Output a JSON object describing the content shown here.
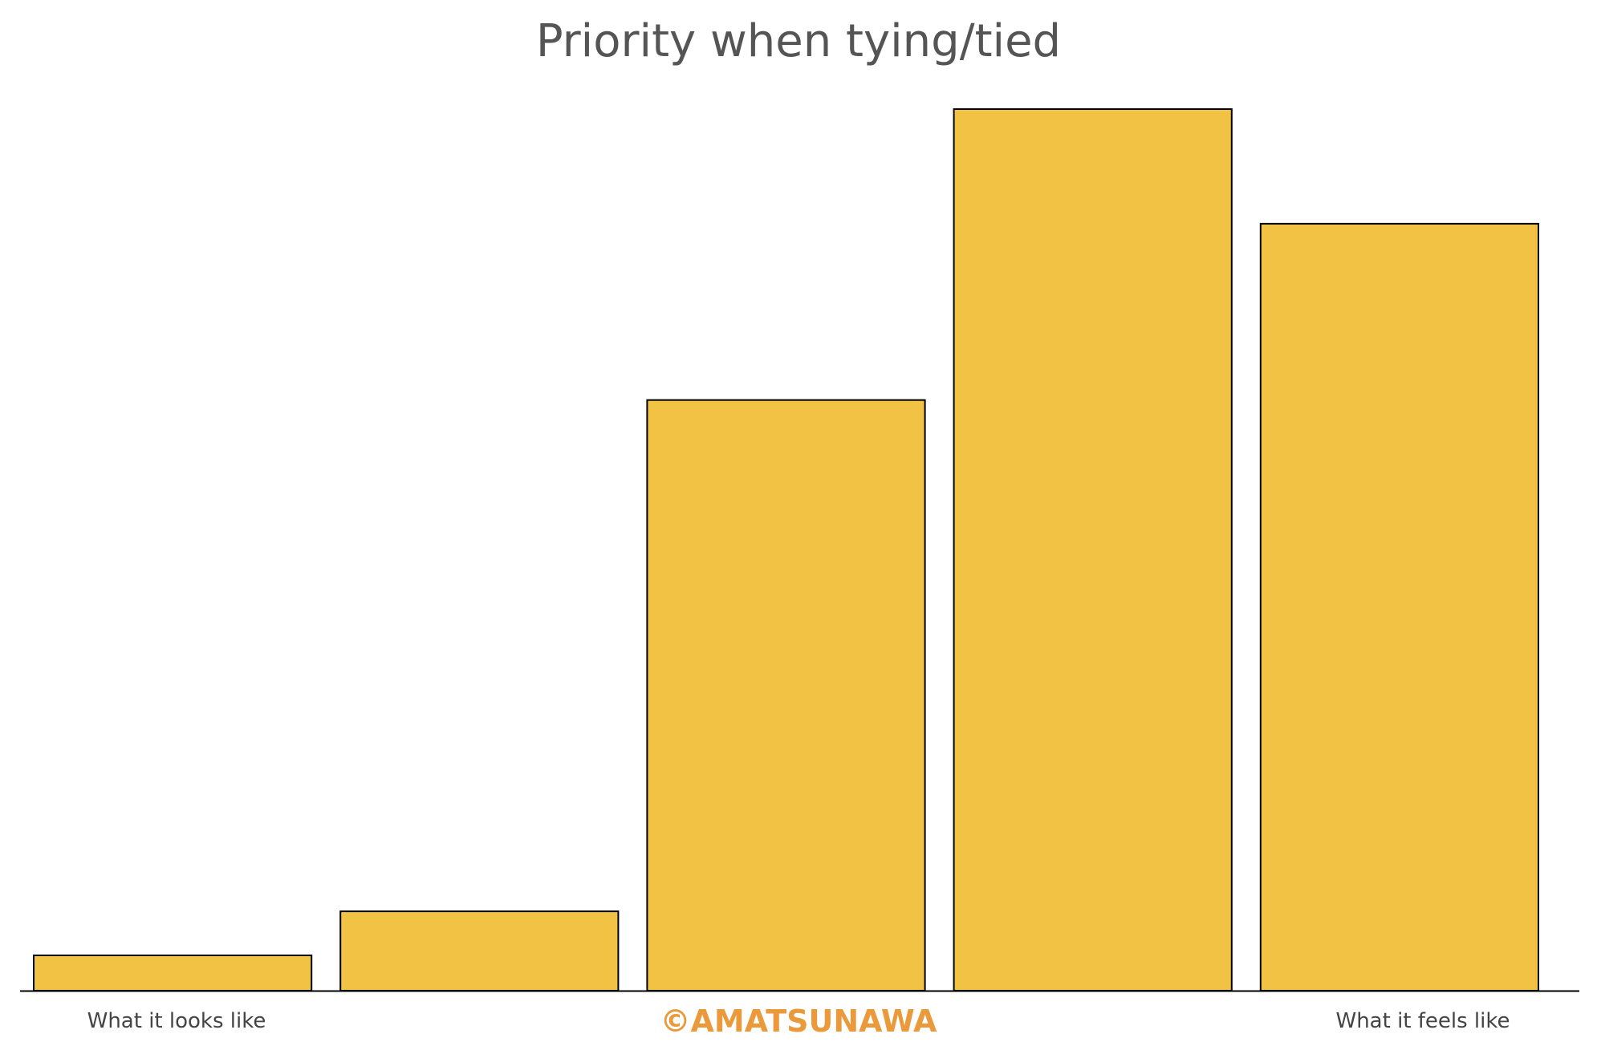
{
  "chart_data": {
    "type": "bar",
    "title": "Priority when tying/tied",
    "categories": [
      "",
      "",
      "",
      "",
      ""
    ],
    "values": [
      4,
      9,
      67,
      100,
      87
    ],
    "ylim": [
      0,
      100
    ],
    "xlabel": "",
    "ylabel": "",
    "grid": false,
    "legend": "none",
    "axis_end_labels": {
      "left": "What it looks like",
      "right": "What it feels like"
    },
    "bar_color": "#F2C244",
    "bar_edge_color": "#000000",
    "axis_color": "#000000"
  },
  "watermark": {
    "text": "©AMATSUNAWA",
    "color": "#EA9A3A"
  }
}
